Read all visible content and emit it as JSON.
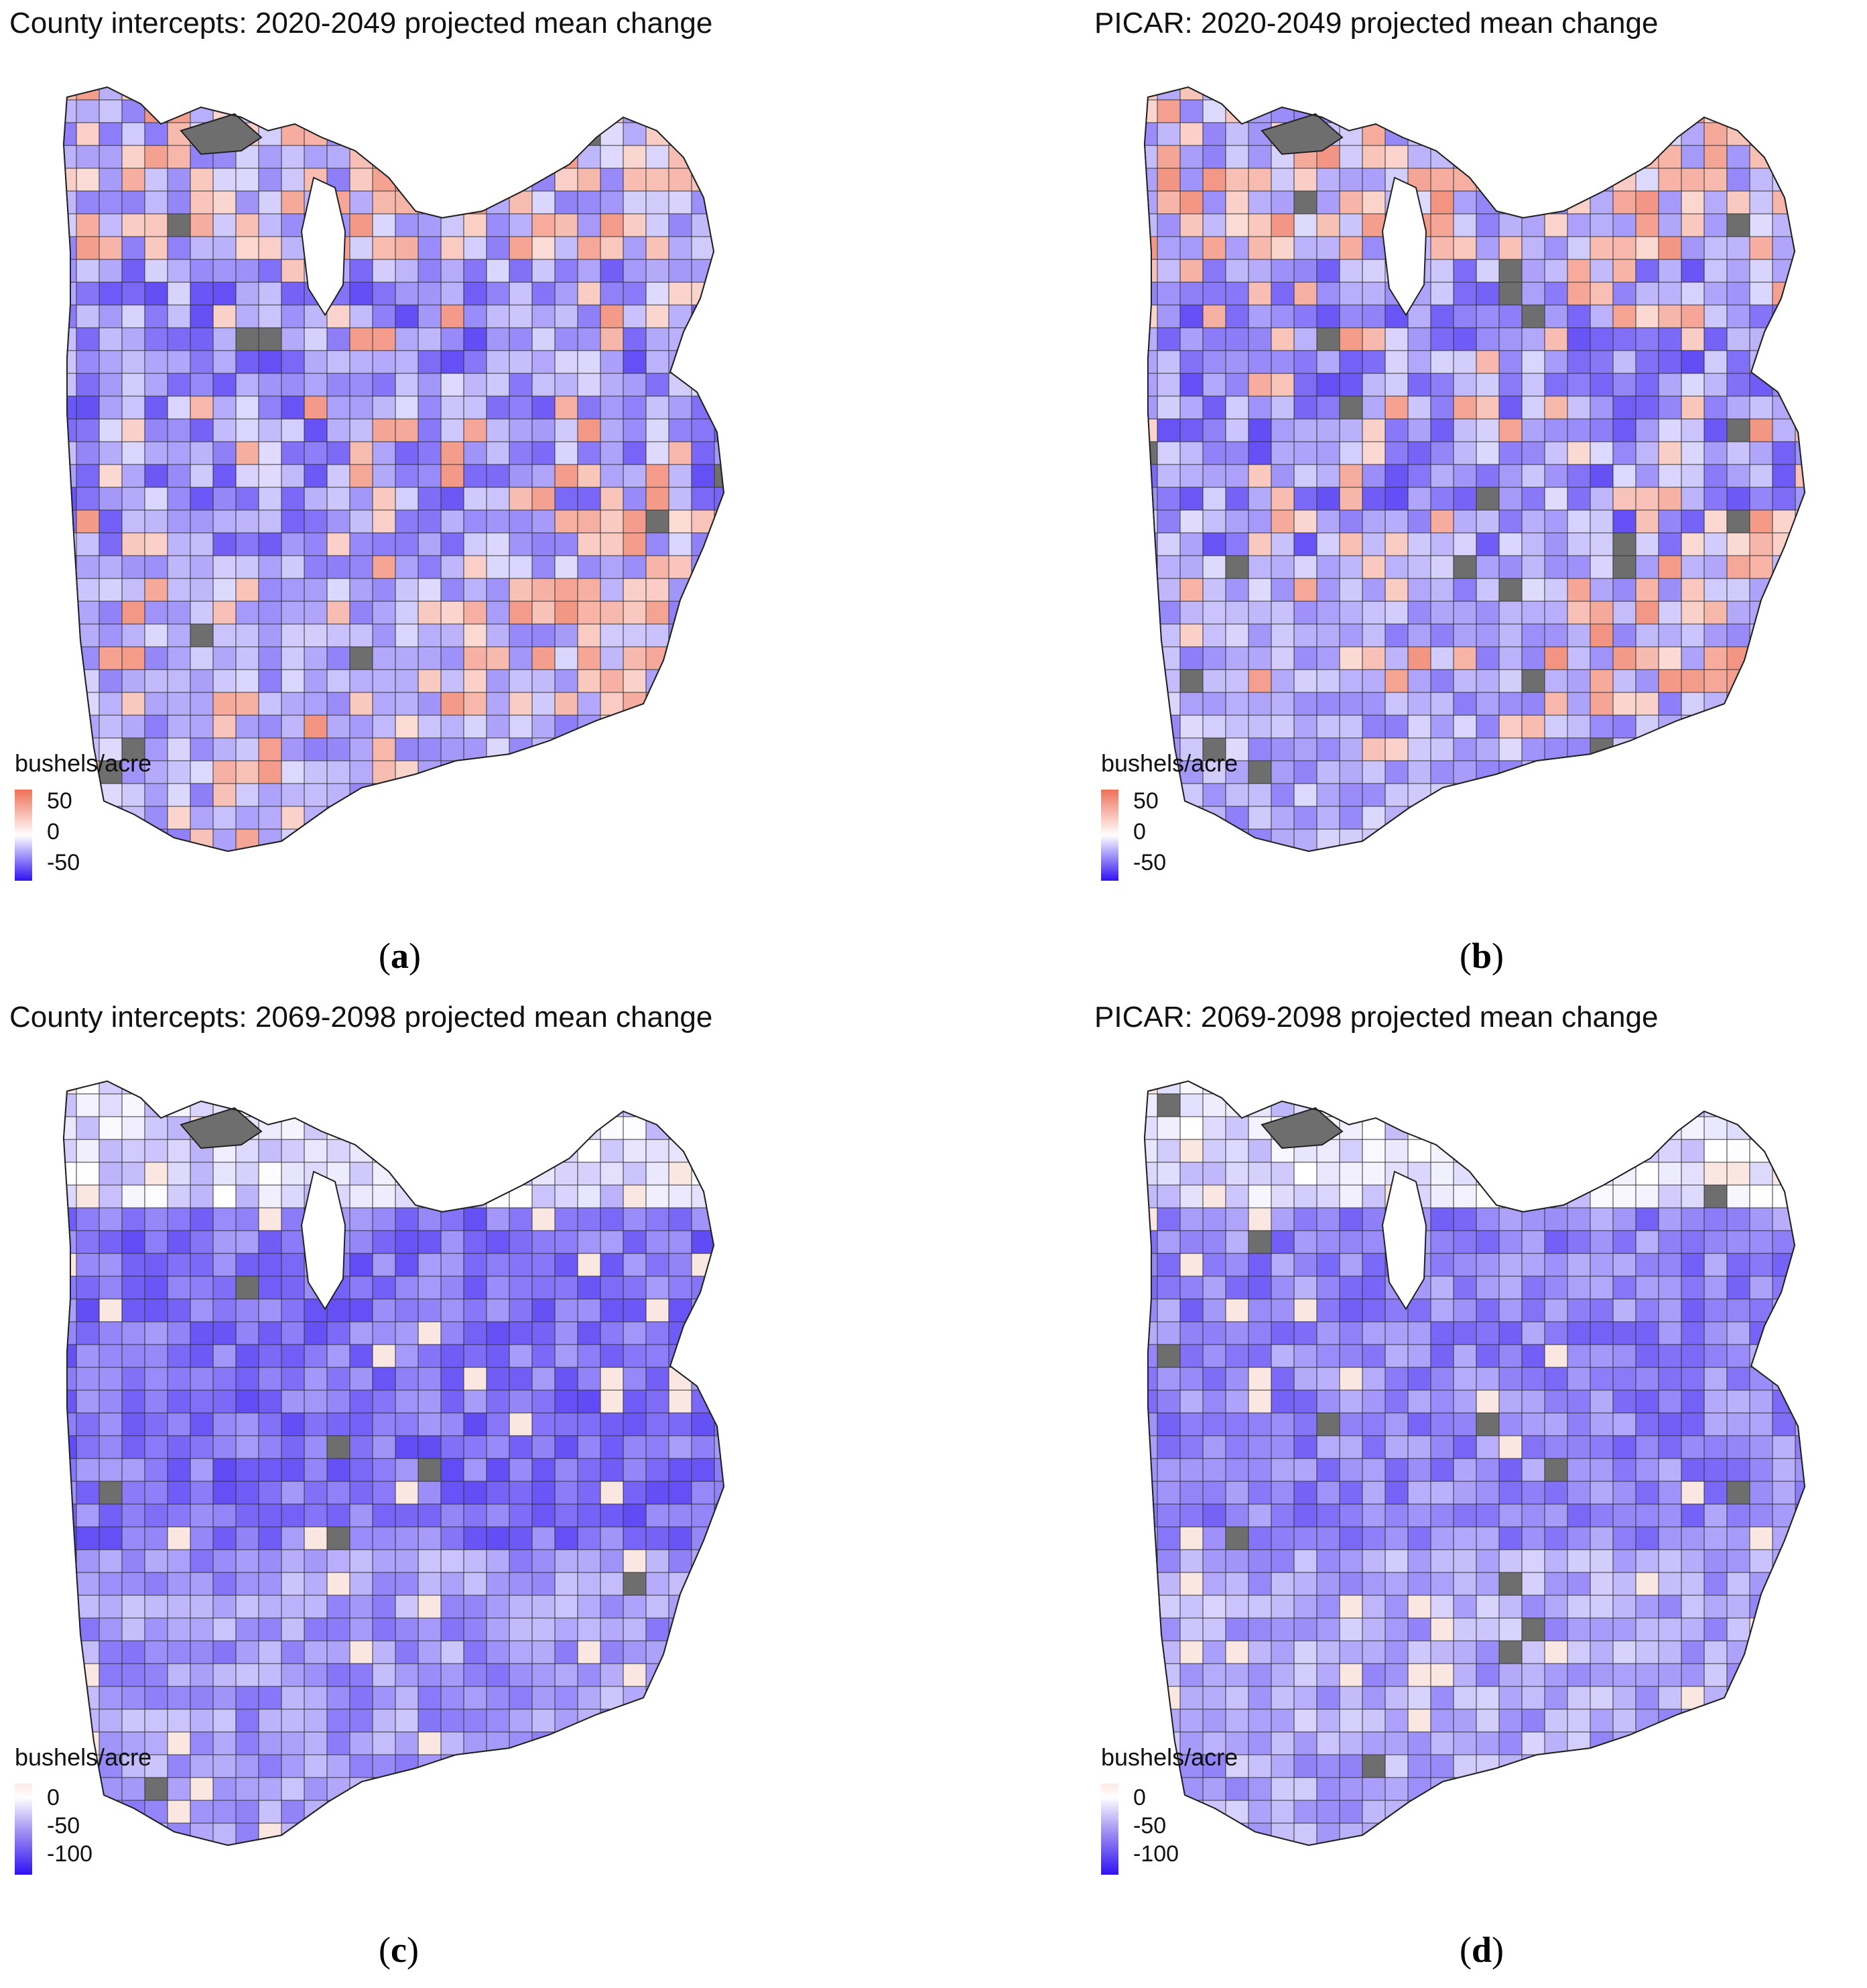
{
  "figure": {
    "colors": {
      "positive": "#ef7058",
      "zero": "#ffffff",
      "negative": "#2f12f2",
      "no_data": "#6e6e6e",
      "boundary": "#222222"
    },
    "panels": [
      {
        "id": "a",
        "label": "a",
        "title": "County intercepts: 2020-2049 projected mean change",
        "legend_title": "bushels/acre",
        "legend_ticks": [
          "50",
          "0",
          "-50"
        ],
        "scale": "diverging"
      },
      {
        "id": "b",
        "label": "b",
        "title": "PICAR: 2020-2049 projected mean change",
        "legend_title": "bushels/acre",
        "legend_ticks": [
          "50",
          "0",
          "-50"
        ],
        "scale": "diverging"
      },
      {
        "id": "c",
        "label": "c",
        "title": "County intercepts: 2069-2098 projected mean change",
        "legend_title": "bushels/acre",
        "legend_ticks": [
          "0",
          "-50",
          "-100"
        ],
        "scale": "sequential"
      },
      {
        "id": "d",
        "label": "d",
        "title": "PICAR: 2069-2098 projected mean change",
        "legend_title": "bushels/acre",
        "legend_ticks": [
          "0",
          "-50",
          "-100"
        ],
        "scale": "sequential"
      }
    ]
  }
}
